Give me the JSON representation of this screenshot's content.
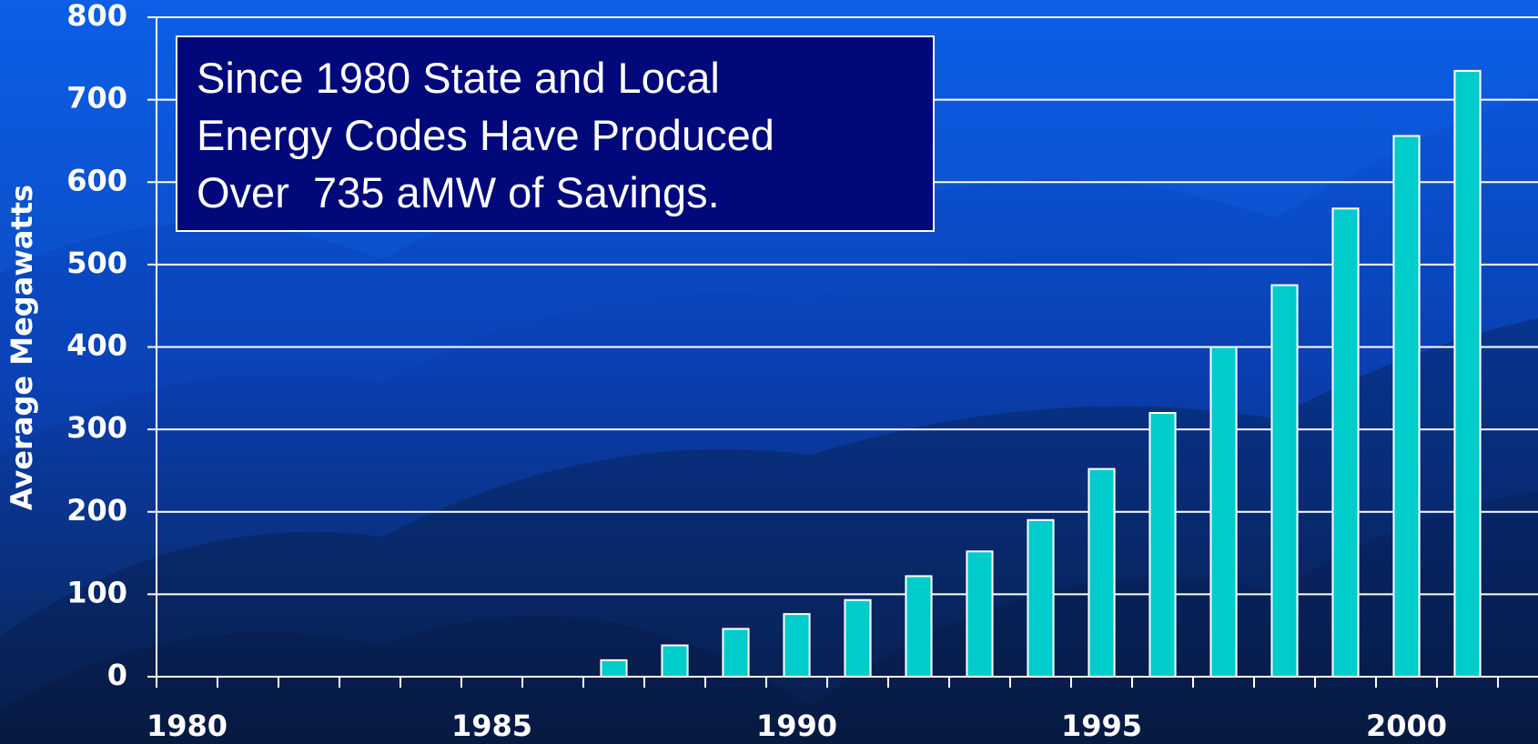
{
  "chart_data": {
    "type": "bar",
    "title": [
      "Since 1980 State and Local",
      "Energy Codes Have Produced",
      "Over  735 aMW of Savings."
    ],
    "y_label": "Average Megawatts",
    "categories": [
      "1980",
      null,
      null,
      null,
      null,
      "1985",
      null,
      null,
      null,
      null,
      "1990",
      null,
      null,
      null,
      null,
      "1995",
      null,
      null,
      null,
      null,
      "2000",
      null
    ],
    "values": [
      0,
      0,
      0,
      0,
      0,
      0,
      0,
      20,
      38,
      58,
      76,
      93,
      122,
      152,
      190,
      252,
      320,
      400,
      475,
      568,
      656,
      735
    ],
    "color": "#00cccc",
    "ylim": [
      0,
      800
    ],
    "yticks": [
      0,
      100,
      200,
      300,
      400,
      500,
      600,
      700,
      800
    ],
    "grid": true
  }
}
